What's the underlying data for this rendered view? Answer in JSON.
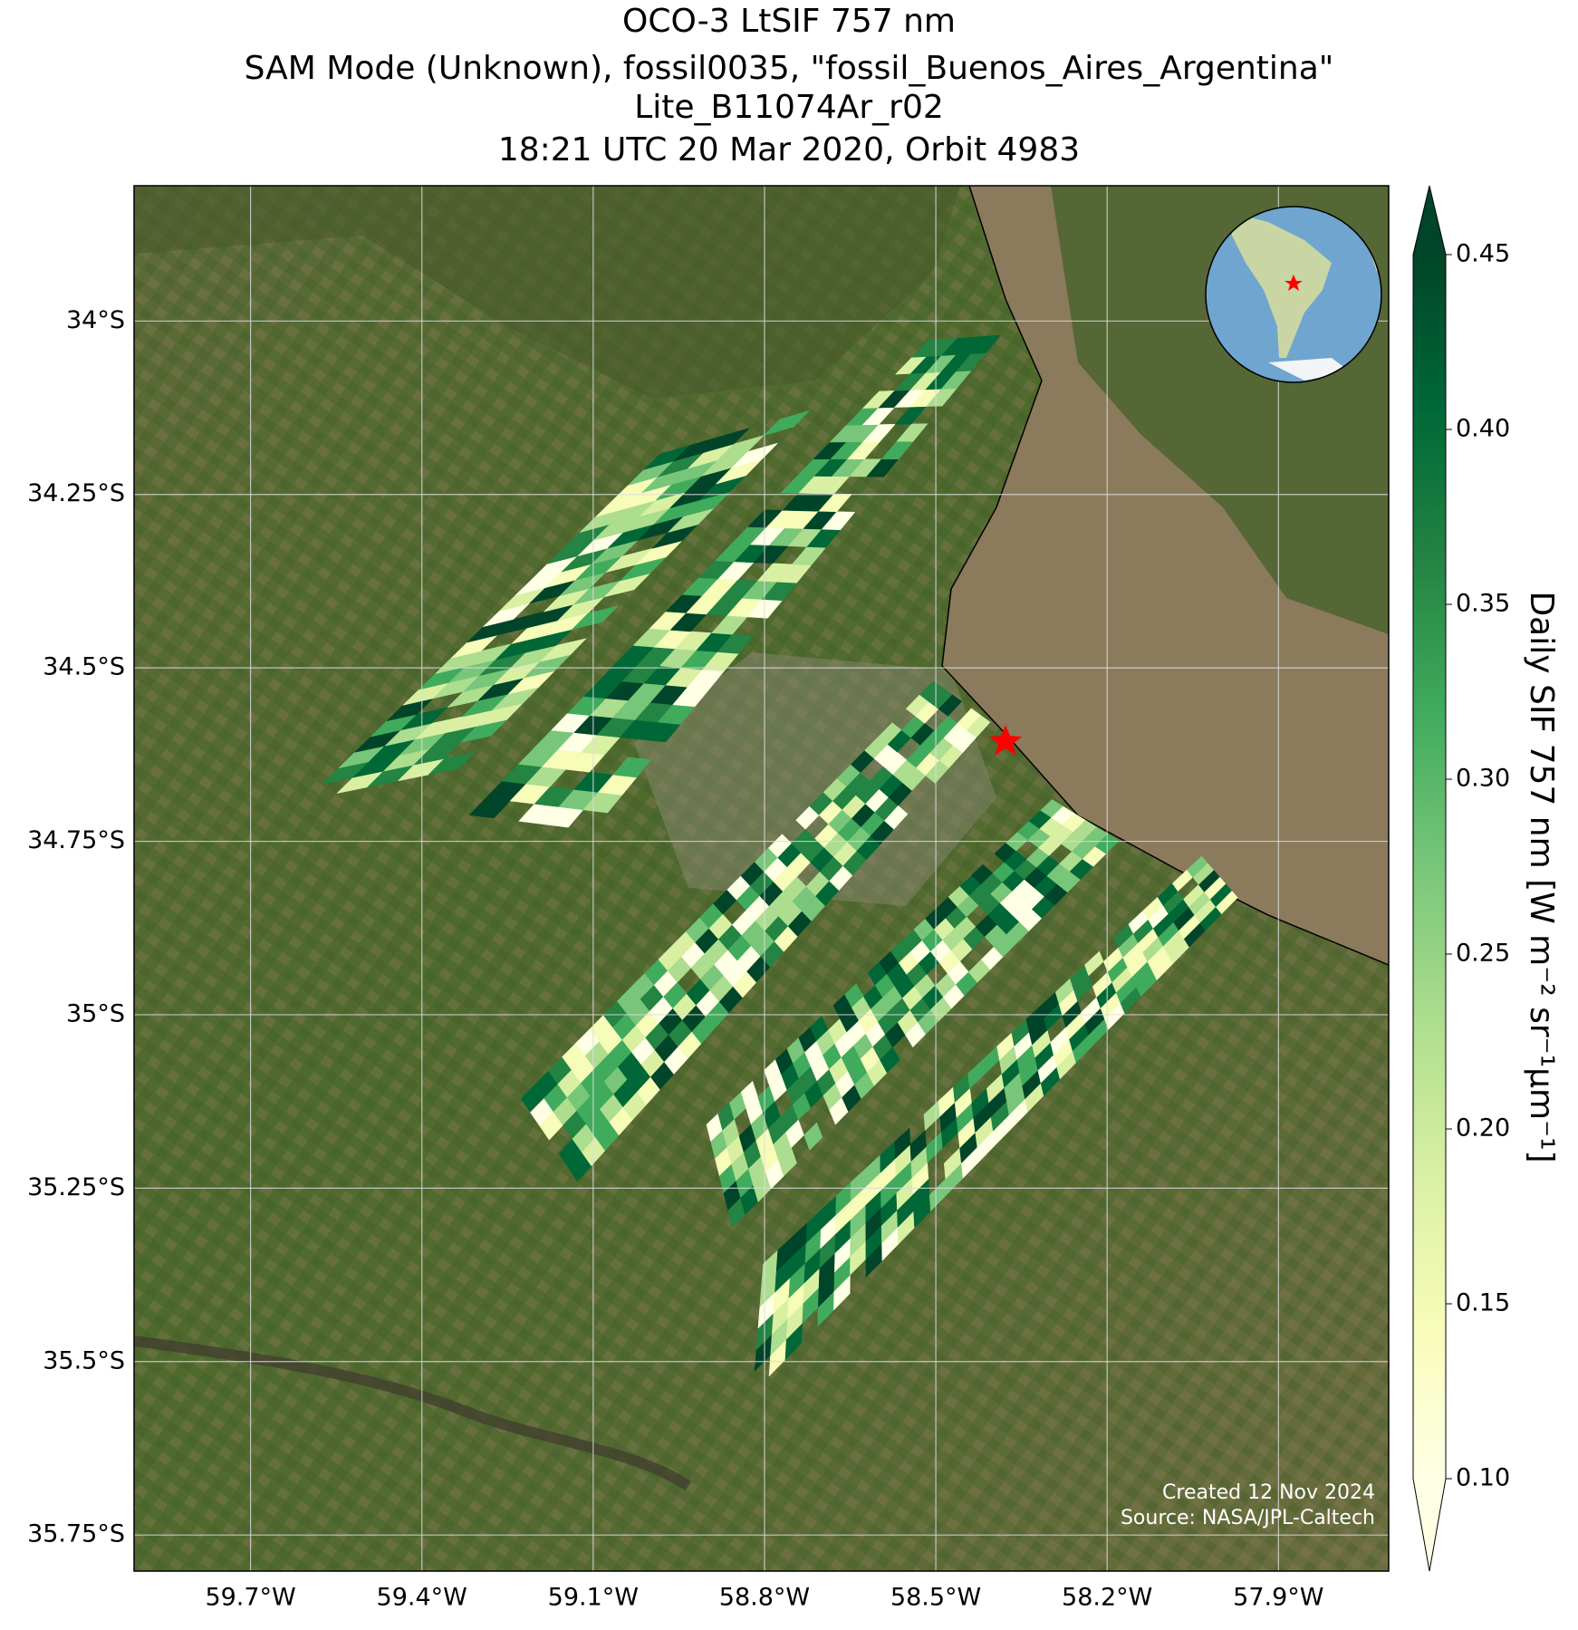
{
  "chart_data": {
    "type": "map",
    "title": [
      "OCO-3 LtSIF 757 nm",
      "SAM Mode (Unknown), fossil0035, \"fossil_Buenos_Aires_Argentina\"",
      "Lite_B11074Ar_r02",
      "18:21 UTC 20 Mar 2020, Orbit 4983"
    ],
    "xlim": [
      -59.904,
      -57.707
    ],
    "ylim": [
      -35.802,
      -33.805
    ],
    "xticks": [
      {
        "value": -59.7,
        "label": "59.7°W"
      },
      {
        "value": -59.4,
        "label": "59.4°W"
      },
      {
        "value": -59.1,
        "label": "59.1°W"
      },
      {
        "value": -58.8,
        "label": "58.8°W"
      },
      {
        "value": -58.5,
        "label": "58.5°W"
      },
      {
        "value": -58.2,
        "label": "58.2°W"
      },
      {
        "value": -57.9,
        "label": "57.9°W"
      }
    ],
    "yticks": [
      {
        "value": -34,
        "label": "34°S"
      },
      {
        "value": -34.25,
        "label": "34.25°S"
      },
      {
        "value": -34.5,
        "label": "34.5°S"
      },
      {
        "value": -34.75,
        "label": "34.75°S"
      },
      {
        "value": -35,
        "label": "35°S"
      },
      {
        "value": -35.25,
        "label": "35.25°S"
      },
      {
        "value": -35.5,
        "label": "35.5°S"
      },
      {
        "value": -35.75,
        "label": "35.75°S"
      }
    ],
    "grid": true,
    "colorbar": {
      "label": "Daily SIF 757 nm [W m⁻² sr⁻¹μm⁻¹]",
      "lim": [
        0.1,
        0.45
      ],
      "ticks": [
        {
          "value": 0.1,
          "label": "0.10"
        },
        {
          "value": 0.15,
          "label": "0.15"
        },
        {
          "value": 0.2,
          "label": "0.20"
        },
        {
          "value": 0.25,
          "label": "0.25"
        },
        {
          "value": 0.3,
          "label": "0.30"
        },
        {
          "value": 0.35,
          "label": "0.35"
        },
        {
          "value": 0.4,
          "label": "0.40"
        },
        {
          "value": 0.45,
          "label": "0.45"
        }
      ],
      "colors": [
        "#ffffe5",
        "#f7fcb9",
        "#d9f0a3",
        "#addd8e",
        "#78c679",
        "#41ab5d",
        "#238443",
        "#006837",
        "#004529"
      ]
    },
    "credits": [
      "Created 12 Nov 2024",
      "Source: NASA/JPL-Caltech"
    ]
  }
}
